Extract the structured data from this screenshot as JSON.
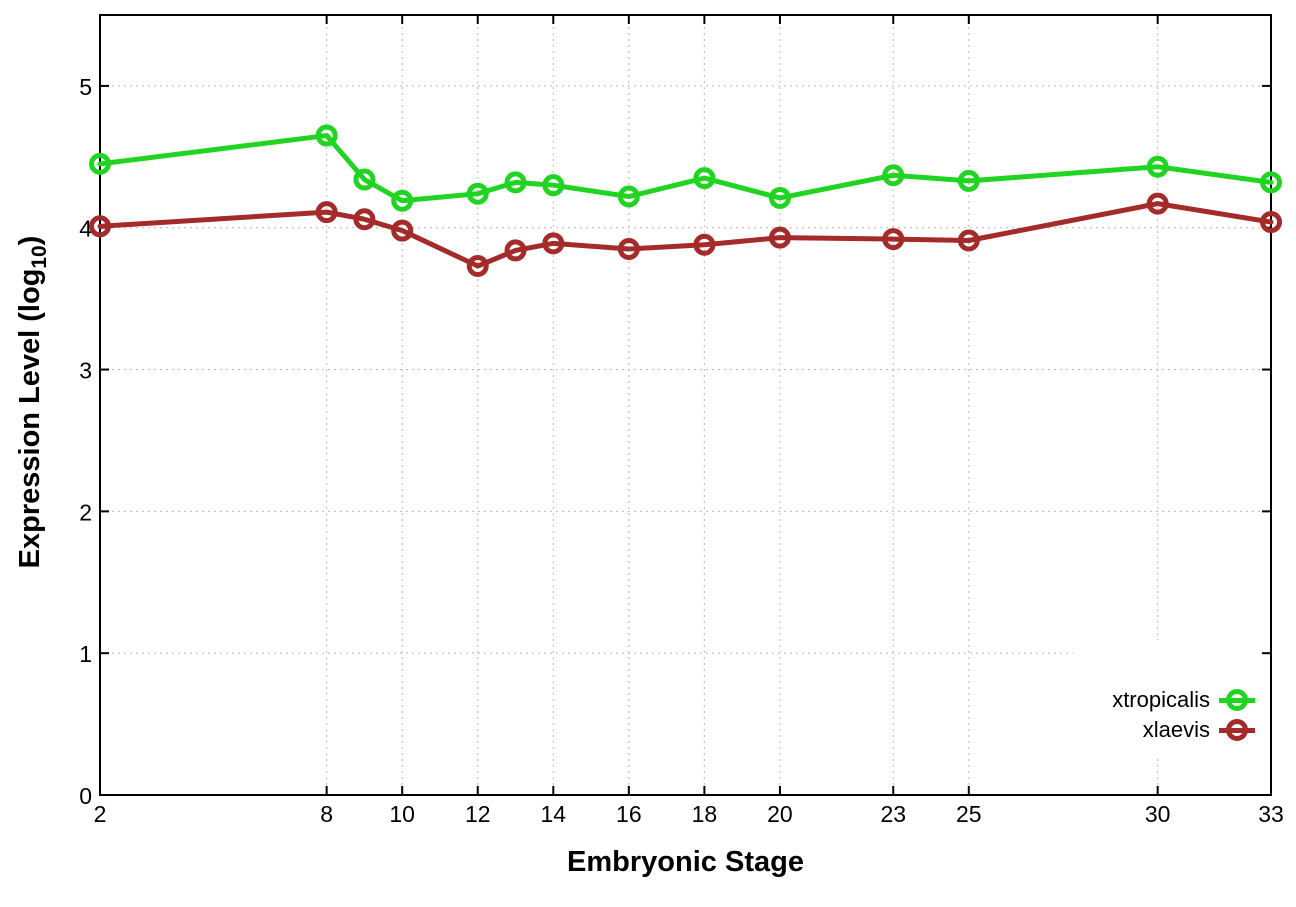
{
  "chart_data": {
    "type": "line",
    "xlabel": "Embryonic Stage",
    "ylabel": "Expression Level (log10)",
    "ylabel_parts": {
      "main": "Expression Level (log",
      "sub": "10",
      "end": ")"
    },
    "x": [
      2,
      8,
      9,
      10,
      12,
      13,
      14,
      16,
      18,
      20,
      23,
      25,
      30,
      33
    ],
    "xticks": [
      2,
      8,
      10,
      12,
      14,
      16,
      18,
      20,
      23,
      25,
      30,
      33
    ],
    "yticks": [
      0,
      1,
      2,
      3,
      4,
      5
    ],
    "xlim": [
      2,
      33
    ],
    "ylim": [
      0,
      5.5
    ],
    "grid": true,
    "grid_style": "dotted",
    "legend_position": "bottom-right-inside",
    "marker": "open-circle",
    "series": [
      {
        "name": "xtropicalis",
        "color": "#22d422",
        "values": [
          4.45,
          4.65,
          4.34,
          4.19,
          4.24,
          4.32,
          4.3,
          4.22,
          4.35,
          4.21,
          4.37,
          4.33,
          4.43,
          4.32
        ]
      },
      {
        "name": "xlaevis",
        "color": "#a52a2a",
        "values": [
          4.01,
          4.11,
          4.06,
          3.98,
          3.73,
          3.84,
          3.89,
          3.85,
          3.88,
          3.93,
          3.92,
          3.91,
          4.17,
          4.04
        ]
      }
    ]
  }
}
